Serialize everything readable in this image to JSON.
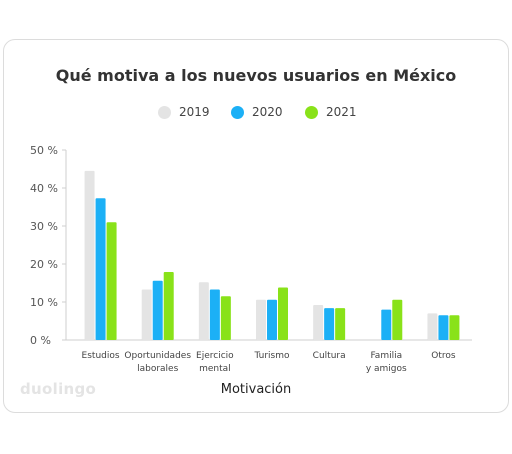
{
  "chart_data": {
    "type": "bar",
    "title": "Qué motiva a los nuevos usuarios en México",
    "xlabel": "Motivación",
    "ylabel": "",
    "ylim": [
      0,
      50
    ],
    "yticks": [
      "0 %",
      "10 %",
      "20 %",
      "30 %",
      "40 %",
      "50 %"
    ],
    "ytick_values": [
      0,
      10,
      20,
      30,
      40,
      50
    ],
    "categories": [
      [
        "Estudios"
      ],
      [
        "Oportunidades",
        "laborales"
      ],
      [
        "Ejercicio",
        "mental"
      ],
      [
        "Turismo"
      ],
      [
        "Cultura"
      ],
      [
        "Familia",
        "y amigos"
      ],
      [
        "Otros"
      ]
    ],
    "series": [
      {
        "name": "2019",
        "color": "#e4e4e4",
        "values": [
          44.5,
          13.3,
          15.2,
          10.6,
          9.2,
          0,
          7.0
        ]
      },
      {
        "name": "2020",
        "color": "#1cb0f6",
        "values": [
          37.3,
          15.6,
          13.3,
          10.6,
          8.4,
          8.0,
          6.5
        ]
      },
      {
        "name": "2021",
        "color": "#89e219",
        "values": [
          31.0,
          17.9,
          11.5,
          13.8,
          8.4,
          10.6,
          6.5
        ]
      }
    ],
    "legend_position": "top",
    "grid": false
  },
  "brand": "duolingo"
}
